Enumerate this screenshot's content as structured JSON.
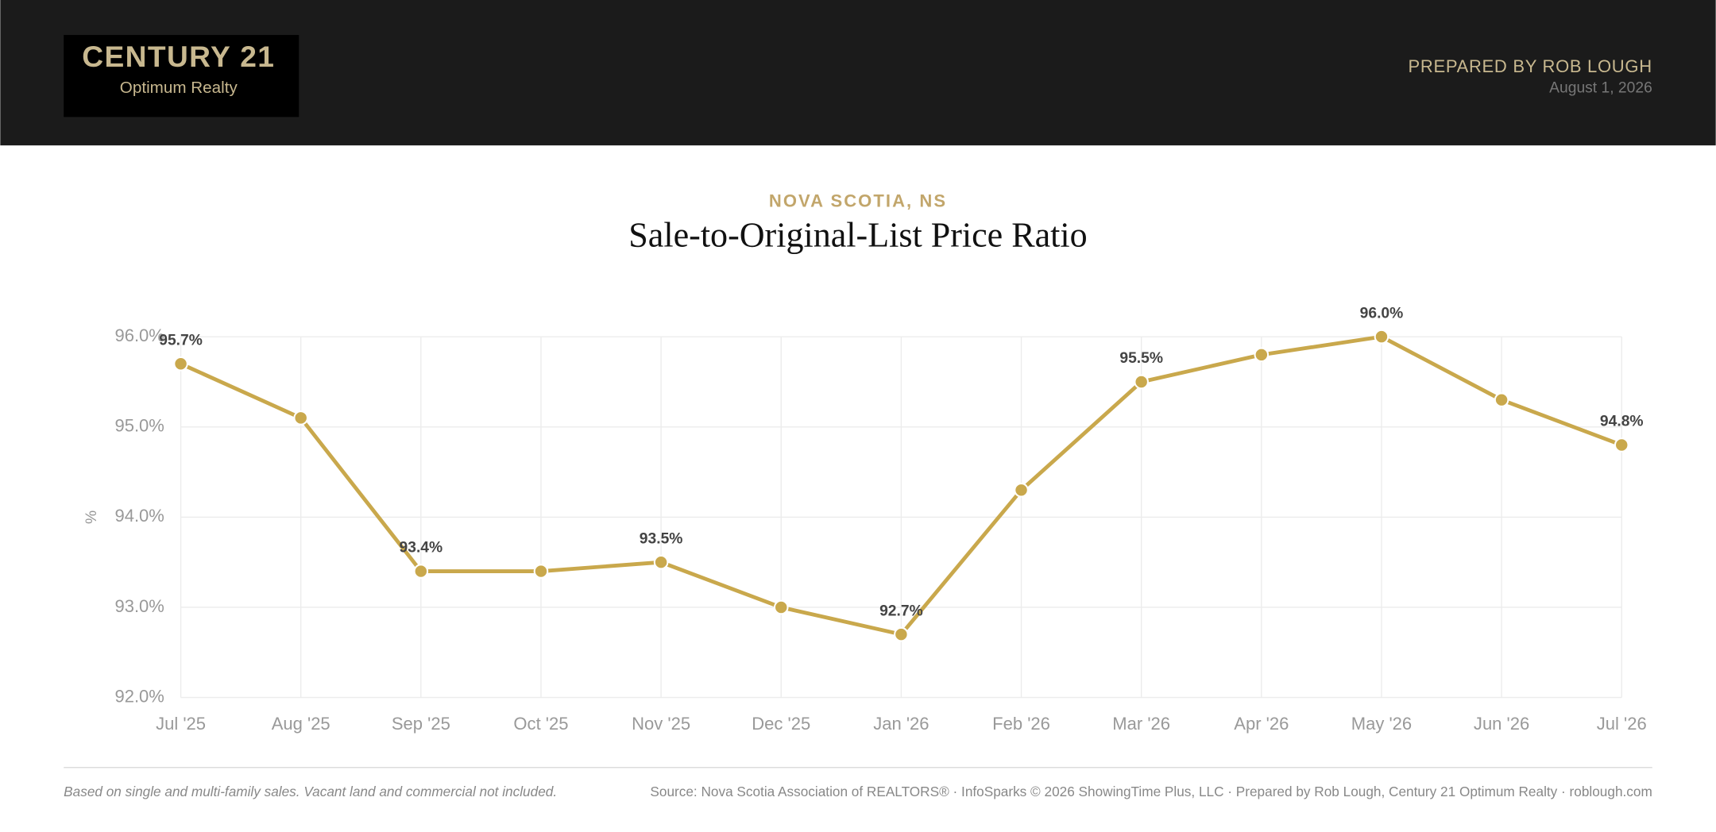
{
  "header": {
    "logo_brand": "CENTURY 21",
    "logo_sub": "Optimum Realty",
    "prepared_by": "PREPARED BY ROB LOUGH",
    "date": "August 1, 2026"
  },
  "chart_data": {
    "type": "line",
    "subtitle": "NOVA SCOTIA, NS",
    "title": "Sale-to-Original-List Price Ratio",
    "y_label": "%",
    "categories": [
      "Jul '25",
      "Aug '25",
      "Sep '25",
      "Oct '25",
      "Nov '25",
      "Dec '25",
      "Jan '26",
      "Feb '26",
      "Mar '26",
      "Apr '26",
      "May '26",
      "Jun '26",
      "Jul '26"
    ],
    "values": [
      95.7,
      95.1,
      93.4,
      93.4,
      93.5,
      93.0,
      92.7,
      94.3,
      95.5,
      95.8,
      96.0,
      95.3,
      94.8
    ],
    "value_labels": [
      "95.7%",
      null,
      "93.4%",
      null,
      "93.5%",
      null,
      "92.7%",
      null,
      "95.5%",
      null,
      "96.0%",
      null,
      "94.8%"
    ],
    "color": "#c9a84c",
    "ylim": [
      92,
      96
    ],
    "yticks": [
      {
        "value": 92,
        "label": "92.0%"
      },
      {
        "value": 93,
        "label": "93.0%"
      },
      {
        "value": 94,
        "label": "94.0%"
      },
      {
        "value": 95,
        "label": "95.0%"
      },
      {
        "value": 96,
        "label": "96.0%"
      }
    ],
    "grid": true
  },
  "footer": {
    "note": "Based on single and multi-family sales. Vacant land and commercial not included.",
    "source": "Source: Nova Scotia Association of REALTORS® · InfoSparks © 2026 ShowingTime Plus, LLC · Prepared by Rob Lough, Century 21 Optimum Realty · roblough.com"
  }
}
